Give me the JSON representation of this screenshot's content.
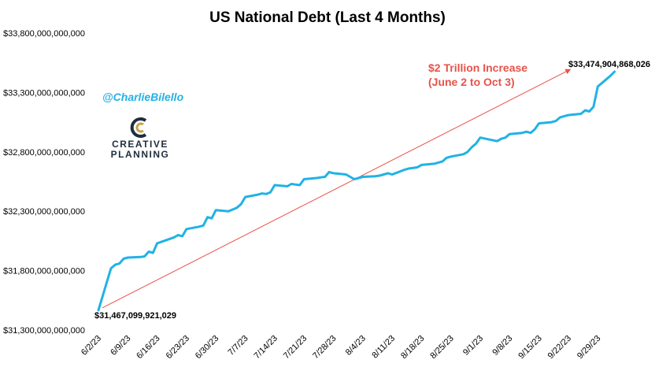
{
  "chart_data": {
    "type": "line",
    "title": "US National Debt (Last 4 Months)",
    "xlabel": "",
    "ylabel": "",
    "ylim": [
      31300000000000,
      33800000000000
    ],
    "yticks": [
      31300000000000,
      31800000000000,
      32300000000000,
      32800000000000,
      33300000000000,
      33800000000000
    ],
    "ytick_labels": [
      "$31,300,000,000,000",
      "$31,800,000,000,000",
      "$32,300,000,000,000",
      "$32,800,000,000,000",
      "$33,300,000,000,000",
      "$33,800,000,000,000"
    ],
    "xtick_labels": [
      "6/2/23",
      "6/9/23",
      "6/16/23",
      "6/23/23",
      "6/30/23",
      "7/7/23",
      "7/14/23",
      "7/21/23",
      "7/28/23",
      "8/4/23",
      "8/11/23",
      "8/18/23",
      "8/25/23",
      "9/1/23",
      "9/8/23",
      "9/15/23",
      "9/22/23",
      "9/29/23"
    ],
    "xtick_dates": [
      "2023-06-02",
      "2023-06-09",
      "2023-06-16",
      "2023-06-23",
      "2023-06-30",
      "2023-07-07",
      "2023-07-14",
      "2023-07-21",
      "2023-07-28",
      "2023-08-04",
      "2023-08-11",
      "2023-08-18",
      "2023-08-25",
      "2023-09-01",
      "2023-09-08",
      "2023-09-15",
      "2023-09-22",
      "2023-09-29"
    ],
    "grid": false,
    "legend": "none",
    "series": [
      {
        "color": "#21b2e6",
        "x": [
          "2023-06-02",
          "2023-06-05",
          "2023-06-06",
          "2023-06-07",
          "2023-06-08",
          "2023-06-09",
          "2023-06-12",
          "2023-06-13",
          "2023-06-14",
          "2023-06-15",
          "2023-06-16",
          "2023-06-20",
          "2023-06-21",
          "2023-06-22",
          "2023-06-23",
          "2023-06-26",
          "2023-06-27",
          "2023-06-28",
          "2023-06-29",
          "2023-06-30",
          "2023-07-03",
          "2023-07-05",
          "2023-07-06",
          "2023-07-07",
          "2023-07-10",
          "2023-07-11",
          "2023-07-12",
          "2023-07-13",
          "2023-07-14",
          "2023-07-17",
          "2023-07-18",
          "2023-07-19",
          "2023-07-20",
          "2023-07-21",
          "2023-07-24",
          "2023-07-25",
          "2023-07-26",
          "2023-07-27",
          "2023-07-28",
          "2023-07-31",
          "2023-08-01",
          "2023-08-02",
          "2023-08-03",
          "2023-08-04",
          "2023-08-07",
          "2023-08-08",
          "2023-08-09",
          "2023-08-10",
          "2023-08-11",
          "2023-08-14",
          "2023-08-15",
          "2023-08-16",
          "2023-08-17",
          "2023-08-18",
          "2023-08-21",
          "2023-08-22",
          "2023-08-23",
          "2023-08-24",
          "2023-08-25",
          "2023-08-28",
          "2023-08-29",
          "2023-08-30",
          "2023-08-31",
          "2023-09-01",
          "2023-09-05",
          "2023-09-06",
          "2023-09-07",
          "2023-09-08",
          "2023-09-11",
          "2023-09-12",
          "2023-09-13",
          "2023-09-14",
          "2023-09-15",
          "2023-09-18",
          "2023-09-19",
          "2023-09-20",
          "2023-09-21",
          "2023-09-22",
          "2023-09-25",
          "2023-09-26",
          "2023-09-27",
          "2023-09-28",
          "2023-09-29",
          "2023-10-02",
          "2023-10-03"
        ],
        "values": [
          31467099921029,
          31820000000000,
          31850000000000,
          31860000000000,
          31900000000000,
          31910000000000,
          31915000000000,
          31920000000000,
          31960000000000,
          31950000000000,
          32030000000000,
          32080000000000,
          32100000000000,
          32090000000000,
          32150000000000,
          32170000000000,
          32180000000000,
          32250000000000,
          32240000000000,
          32310000000000,
          32300000000000,
          32330000000000,
          32360000000000,
          32420000000000,
          32440000000000,
          32450000000000,
          32445000000000,
          32460000000000,
          32520000000000,
          32510000000000,
          32530000000000,
          32525000000000,
          32520000000000,
          32570000000000,
          32580000000000,
          32585000000000,
          32590000000000,
          32630000000000,
          32620000000000,
          32610000000000,
          32590000000000,
          32570000000000,
          32580000000000,
          32590000000000,
          32595000000000,
          32600000000000,
          32610000000000,
          32620000000000,
          32610000000000,
          32650000000000,
          32660000000000,
          32665000000000,
          32670000000000,
          32690000000000,
          32700000000000,
          32710000000000,
          32720000000000,
          32750000000000,
          32760000000000,
          32780000000000,
          32800000000000,
          32840000000000,
          32870000000000,
          32920000000000,
          32890000000000,
          32910000000000,
          32920000000000,
          32950000000000,
          32960000000000,
          32970000000000,
          32960000000000,
          32990000000000,
          33040000000000,
          33050000000000,
          33060000000000,
          33090000000000,
          33100000000000,
          33110000000000,
          33120000000000,
          33150000000000,
          33140000000000,
          33180000000000,
          33350000000000,
          33440000000000,
          33474904868026
        ]
      }
    ],
    "annotations": {
      "start_label": "$31,467,099,921,029",
      "end_label": "$33,474,904,868,026",
      "increase_line1": "$2 Trillion Increase",
      "increase_line2": "(June 2 to Oct 3)",
      "arrow_color": "#e8524a"
    }
  },
  "branding": {
    "handle": "@CharlieBilello",
    "logo_line1": "CREATIVE",
    "logo_line2": "PLANNING",
    "icon": "creative-planning-logo-icon"
  }
}
